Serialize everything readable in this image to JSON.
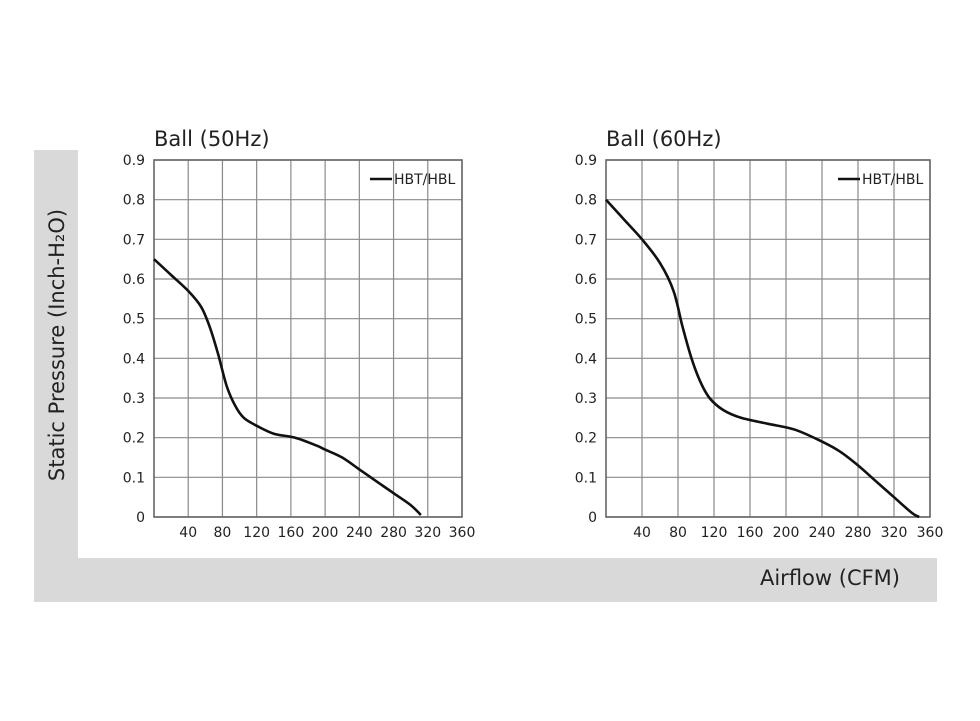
{
  "figure": {
    "ylabel": "Static Pressure (Inch-H₂O)",
    "xlabel": "Airflow (CFM)"
  },
  "chart_data": [
    {
      "type": "line",
      "title": "Ball (50Hz)",
      "xlim": [
        0,
        360
      ],
      "ylim": [
        0,
        0.9
      ],
      "x_ticks": [
        "40",
        "80",
        "120",
        "160",
        "200",
        "240",
        "280",
        "320",
        "360"
      ],
      "y_ticks": [
        "0",
        "0.1",
        "0.2",
        "0.3",
        "0.4",
        "0.5",
        "0.6",
        "0.7",
        "0.8",
        "0.9"
      ],
      "grid": true,
      "legend_position": "top-right",
      "series": [
        {
          "name": "HBT/HBL",
          "color": "#111111",
          "points": [
            [
              0,
              0.65
            ],
            [
              20,
              0.61
            ],
            [
              40,
              0.57
            ],
            [
              55,
              0.53
            ],
            [
              65,
              0.48
            ],
            [
              75,
              0.41
            ],
            [
              85,
              0.33
            ],
            [
              95,
              0.28
            ],
            [
              105,
              0.25
            ],
            [
              120,
              0.23
            ],
            [
              140,
              0.21
            ],
            [
              165,
              0.2
            ],
            [
              190,
              0.18
            ],
            [
              200,
              0.17
            ],
            [
              220,
              0.15
            ],
            [
              240,
              0.12
            ],
            [
              260,
              0.09
            ],
            [
              280,
              0.06
            ],
            [
              300,
              0.03
            ],
            [
              312,
              0.005
            ]
          ]
        }
      ]
    },
    {
      "type": "line",
      "title": "Ball (60Hz)",
      "xlim": [
        0,
        360
      ],
      "ylim": [
        0,
        0.9
      ],
      "x_ticks": [
        "40",
        "80",
        "120",
        "160",
        "200",
        "240",
        "280",
        "320",
        "360"
      ],
      "y_ticks": [
        "0",
        "0.1",
        "0.2",
        "0.3",
        "0.4",
        "0.5",
        "0.6",
        "0.7",
        "0.8",
        "0.9"
      ],
      "grid": true,
      "legend_position": "top-right",
      "series": [
        {
          "name": "HBT/HBL",
          "color": "#111111",
          "points": [
            [
              0,
              0.8
            ],
            [
              20,
              0.75
            ],
            [
              40,
              0.7
            ],
            [
              60,
              0.64
            ],
            [
              75,
              0.57
            ],
            [
              85,
              0.48
            ],
            [
              95,
              0.4
            ],
            [
              105,
              0.34
            ],
            [
              115,
              0.3
            ],
            [
              130,
              0.27
            ],
            [
              150,
              0.25
            ],
            [
              180,
              0.235
            ],
            [
              210,
              0.22
            ],
            [
              240,
              0.19
            ],
            [
              260,
              0.165
            ],
            [
              280,
              0.13
            ],
            [
              300,
              0.09
            ],
            [
              320,
              0.05
            ],
            [
              340,
              0.01
            ],
            [
              348,
              0.0
            ]
          ]
        }
      ]
    }
  ]
}
